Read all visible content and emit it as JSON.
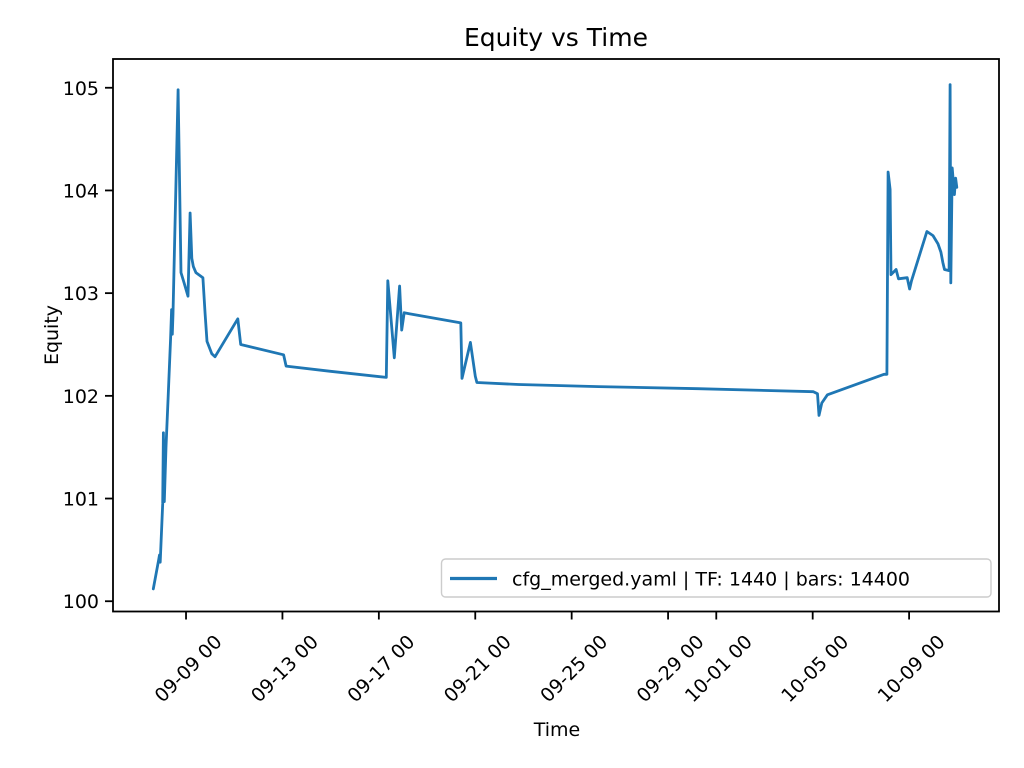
{
  "figure": {
    "title": "Equity vs Time",
    "xlabel": "Time",
    "ylabel": "Equity",
    "legend": {
      "label": "cfg_merged.yaml | TF: 1440 | bars: 14400",
      "position": "lower right"
    }
  },
  "chart_data": {
    "type": "line",
    "title": "Equity vs Time",
    "xlabel": "Time",
    "ylabel": "Equity",
    "grid": false,
    "legend_position": "lower right",
    "x_axis_note": "x values are day offsets; tick '09-09 00' = 4.0, one unit = one day",
    "xlim": [
      0.97,
      37.73
    ],
    "ylim": [
      99.9,
      105.28
    ],
    "x_ticks": [
      {
        "pos": 4,
        "label": "09-09 00"
      },
      {
        "pos": 8,
        "label": "09-13 00"
      },
      {
        "pos": 12,
        "label": "09-17 00"
      },
      {
        "pos": 16,
        "label": "09-21 00"
      },
      {
        "pos": 20,
        "label": "09-25 00"
      },
      {
        "pos": 24,
        "label": "09-29 00"
      },
      {
        "pos": 26,
        "label": "10-01 00"
      },
      {
        "pos": 30,
        "label": "10-05 00"
      },
      {
        "pos": 34,
        "label": "10-09 00"
      }
    ],
    "y_ticks": [
      {
        "pos": 100,
        "label": "100"
      },
      {
        "pos": 101,
        "label": "101"
      },
      {
        "pos": 102,
        "label": "102"
      },
      {
        "pos": 103,
        "label": "103"
      },
      {
        "pos": 104,
        "label": "104"
      },
      {
        "pos": 105,
        "label": "105"
      }
    ],
    "series": [
      {
        "name": "cfg_merged.yaml | TF: 1440 | bars: 14400",
        "color": "#1f77b4",
        "line_width": 2.8,
        "points": [
          [
            2.64,
            100.12
          ],
          [
            2.86,
            100.4
          ],
          [
            2.9,
            100.45
          ],
          [
            2.93,
            100.38
          ],
          [
            3.03,
            100.95
          ],
          [
            3.06,
            101.64
          ],
          [
            3.1,
            100.97
          ],
          [
            3.17,
            101.5
          ],
          [
            3.26,
            102.0
          ],
          [
            3.36,
            102.56
          ],
          [
            3.4,
            102.84
          ],
          [
            3.43,
            102.6
          ],
          [
            3.46,
            102.8
          ],
          [
            3.67,
            104.98
          ],
          [
            3.79,
            103.2
          ],
          [
            3.92,
            103.1
          ],
          [
            4.08,
            102.97
          ],
          [
            4.17,
            103.78
          ],
          [
            4.24,
            103.34
          ],
          [
            4.3,
            103.26
          ],
          [
            4.41,
            103.2
          ],
          [
            4.7,
            103.15
          ],
          [
            4.79,
            102.8
          ],
          [
            4.87,
            102.53
          ],
          [
            5.07,
            102.41
          ],
          [
            5.2,
            102.38
          ],
          [
            6.15,
            102.75
          ],
          [
            6.27,
            102.5
          ],
          [
            8.05,
            102.4
          ],
          [
            8.15,
            102.29
          ],
          [
            9.95,
            102.24
          ],
          [
            12.31,
            102.18
          ],
          [
            12.37,
            103.12
          ],
          [
            12.64,
            102.37
          ],
          [
            12.86,
            103.07
          ],
          [
            12.95,
            102.64
          ],
          [
            13.05,
            102.81
          ],
          [
            13.26,
            102.8
          ],
          [
            15.4,
            102.71
          ],
          [
            15.45,
            102.17
          ],
          [
            15.8,
            102.52
          ],
          [
            16.0,
            102.19
          ],
          [
            16.07,
            102.13
          ],
          [
            17.8,
            102.11
          ],
          [
            21.11,
            102.09
          ],
          [
            25.24,
            102.07
          ],
          [
            30.03,
            102.04
          ],
          [
            30.2,
            102.02
          ],
          [
            30.26,
            101.81
          ],
          [
            30.38,
            101.93
          ],
          [
            30.61,
            102.01
          ],
          [
            32.96,
            102.21
          ],
          [
            33.08,
            102.21
          ],
          [
            33.13,
            104.18
          ],
          [
            33.21,
            104.01
          ],
          [
            33.25,
            103.18
          ],
          [
            33.46,
            103.23
          ],
          [
            33.56,
            103.14
          ],
          [
            33.92,
            103.15
          ],
          [
            34.02,
            103.04
          ],
          [
            34.1,
            103.12
          ],
          [
            34.74,
            103.6
          ],
          [
            34.99,
            103.56
          ],
          [
            35.2,
            103.48
          ],
          [
            35.32,
            103.4
          ],
          [
            35.4,
            103.3
          ],
          [
            35.47,
            103.23
          ],
          [
            35.66,
            103.22
          ],
          [
            35.7,
            105.03
          ],
          [
            35.73,
            103.1
          ],
          [
            35.79,
            104.22
          ],
          [
            35.88,
            103.96
          ],
          [
            35.93,
            104.12
          ],
          [
            35.98,
            104.03
          ]
        ]
      }
    ]
  }
}
